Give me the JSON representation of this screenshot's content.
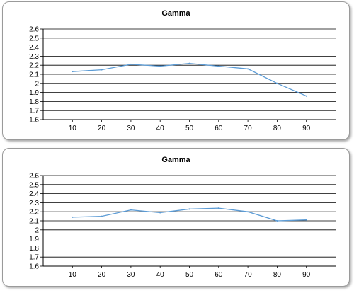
{
  "chart_data": [
    {
      "type": "line",
      "title": "Gamma",
      "xlabel": "",
      "ylabel": "",
      "x": [
        10,
        20,
        30,
        40,
        50,
        60,
        70,
        80,
        90
      ],
      "y_ticks": [
        "1.6",
        "1.7",
        "1.8",
        "1.9",
        "2",
        "2.1",
        "2.2",
        "2.3",
        "2.4",
        "2.5",
        "2.6"
      ],
      "x_ticks": [
        "10",
        "20",
        "30",
        "40",
        "50",
        "60",
        "70",
        "80",
        "90"
      ],
      "ylim": [
        1.6,
        2.6
      ],
      "xlim": [
        0,
        100
      ],
      "grid": "horizontal",
      "series": [
        {
          "values": [
            2.13,
            2.15,
            2.21,
            2.19,
            2.22,
            2.19,
            2.16,
            2.0,
            1.86
          ],
          "color": "#5b9bd5"
        }
      ]
    },
    {
      "type": "line",
      "title": "Gamma",
      "xlabel": "",
      "ylabel": "",
      "x": [
        10,
        20,
        30,
        40,
        50,
        60,
        70,
        80,
        90
      ],
      "y_ticks": [
        "1.6",
        "1.7",
        "1.8",
        "1.9",
        "2",
        "2.1",
        "2.2",
        "2.3",
        "2.4",
        "2.5",
        "2.6"
      ],
      "x_ticks": [
        "10",
        "20",
        "30",
        "40",
        "50",
        "60",
        "70",
        "80",
        "90"
      ],
      "ylim": [
        1.6,
        2.6
      ],
      "xlim": [
        0,
        100
      ],
      "grid": "horizontal",
      "series": [
        {
          "values": [
            2.14,
            2.15,
            2.22,
            2.19,
            2.23,
            2.24,
            2.2,
            2.1,
            2.11
          ],
          "color": "#5b9bd5"
        }
      ]
    }
  ]
}
